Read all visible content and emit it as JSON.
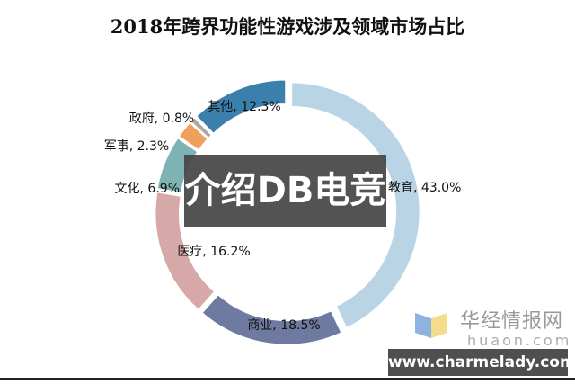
{
  "chart_data": {
    "type": "pie",
    "style": "donut",
    "title": "2018年跨界功能性游戏涉及领域市场占比",
    "categories": [
      "教育",
      "商业",
      "医疗",
      "文化",
      "军事",
      "政府",
      "其他"
    ],
    "values": [
      43.0,
      18.5,
      16.2,
      6.9,
      2.3,
      0.8,
      12.3
    ],
    "labels": [
      "教育, 43.0%",
      "商业, 18.5%",
      "医疗, 16.2%",
      "文化, 6.9%",
      "军事, 2.3%",
      "政府, 0.8%",
      "其他, 12.3%"
    ],
    "colors": [
      "#b9d5e5",
      "#6e7aa0",
      "#d6a8a8",
      "#7fb3b3",
      "#f0a05c",
      "#a8a8a8",
      "#3b80ad"
    ],
    "unit": "%",
    "legend": "none"
  },
  "overlay": {
    "text": "介绍DB电竞"
  },
  "watermark": {
    "name": "华经情报网",
    "domain": "huaon.com",
    "site": "www.charmelady.com"
  }
}
